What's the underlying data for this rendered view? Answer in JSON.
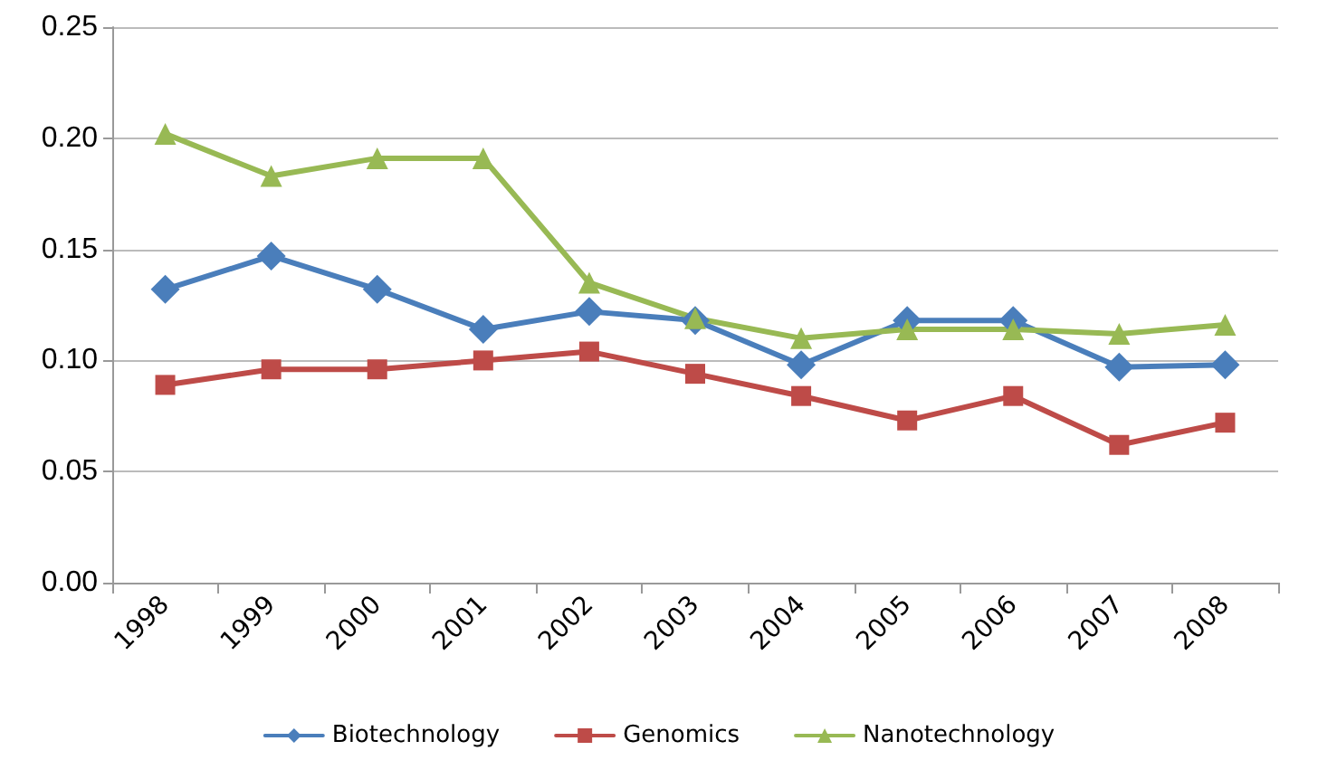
{
  "chart_data": {
    "type": "line",
    "categories": [
      "1998",
      "1999",
      "2000",
      "2001",
      "2002",
      "2003",
      "2004",
      "2005",
      "2006",
      "2007",
      "2008"
    ],
    "series": [
      {
        "name": "Biotechnology",
        "color": "#4a7ebb",
        "marker": "diamond",
        "values": [
          0.132,
          0.147,
          0.132,
          0.114,
          0.122,
          0.118,
          0.098,
          0.118,
          0.118,
          0.097,
          0.098
        ]
      },
      {
        "name": "Genomics",
        "color": "#be4b48",
        "marker": "square",
        "values": [
          0.089,
          0.096,
          0.096,
          0.1,
          0.104,
          0.094,
          0.084,
          0.073,
          0.084,
          0.062,
          0.072
        ]
      },
      {
        "name": "Nanotechnology",
        "color": "#98b954",
        "marker": "triangle",
        "values": [
          0.202,
          0.183,
          0.191,
          0.191,
          0.135,
          0.119,
          0.11,
          0.114,
          0.114,
          0.112,
          0.116
        ]
      }
    ],
    "ylim": [
      0,
      0.25
    ],
    "yticks": [
      {
        "value": 0,
        "label": "0.00"
      },
      {
        "value": 0.05,
        "label": "0.05"
      },
      {
        "value": 0.1,
        "label": "0.10"
      },
      {
        "value": 0.15,
        "label": "0.15"
      },
      {
        "value": 0.2,
        "label": "0.20"
      },
      {
        "value": 0.25,
        "label": "0.25"
      }
    ],
    "grid": "y",
    "legend": "bottom",
    "line_style": "solid"
  }
}
